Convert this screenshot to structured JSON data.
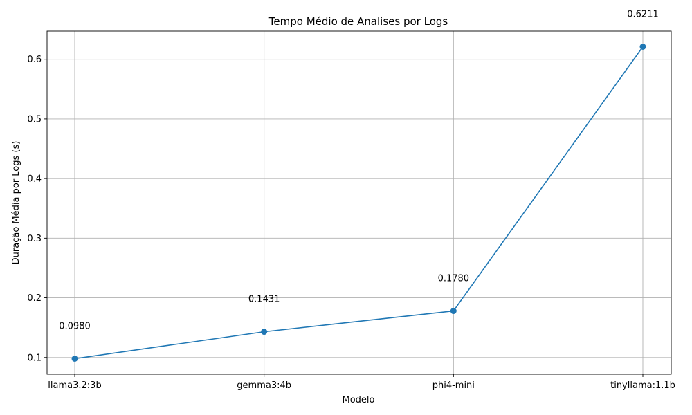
{
  "chart_data": {
    "type": "line",
    "title": "Tempo Médio de Analises por Logs",
    "xlabel": "Modelo",
    "ylabel": "Duração Média por Logs (s)",
    "categories": [
      "llama3.2:3b",
      "gemma3:4b",
      "phi4-mini",
      "tinyllama:1.1b"
    ],
    "values": [
      0.098,
      0.1431,
      0.178,
      0.6211
    ],
    "data_labels": [
      "0.0980",
      "0.1431",
      "0.1780",
      "0.6211"
    ],
    "yticks": [
      0.1,
      0.2,
      0.3,
      0.4,
      0.5,
      0.6
    ],
    "ytick_labels": [
      "0.1",
      "0.2",
      "0.3",
      "0.4",
      "0.5",
      "0.6"
    ],
    "ylim": [
      0.0719,
      0.6472
    ],
    "grid": true,
    "marker": "circle",
    "color": "#1f77b4"
  }
}
